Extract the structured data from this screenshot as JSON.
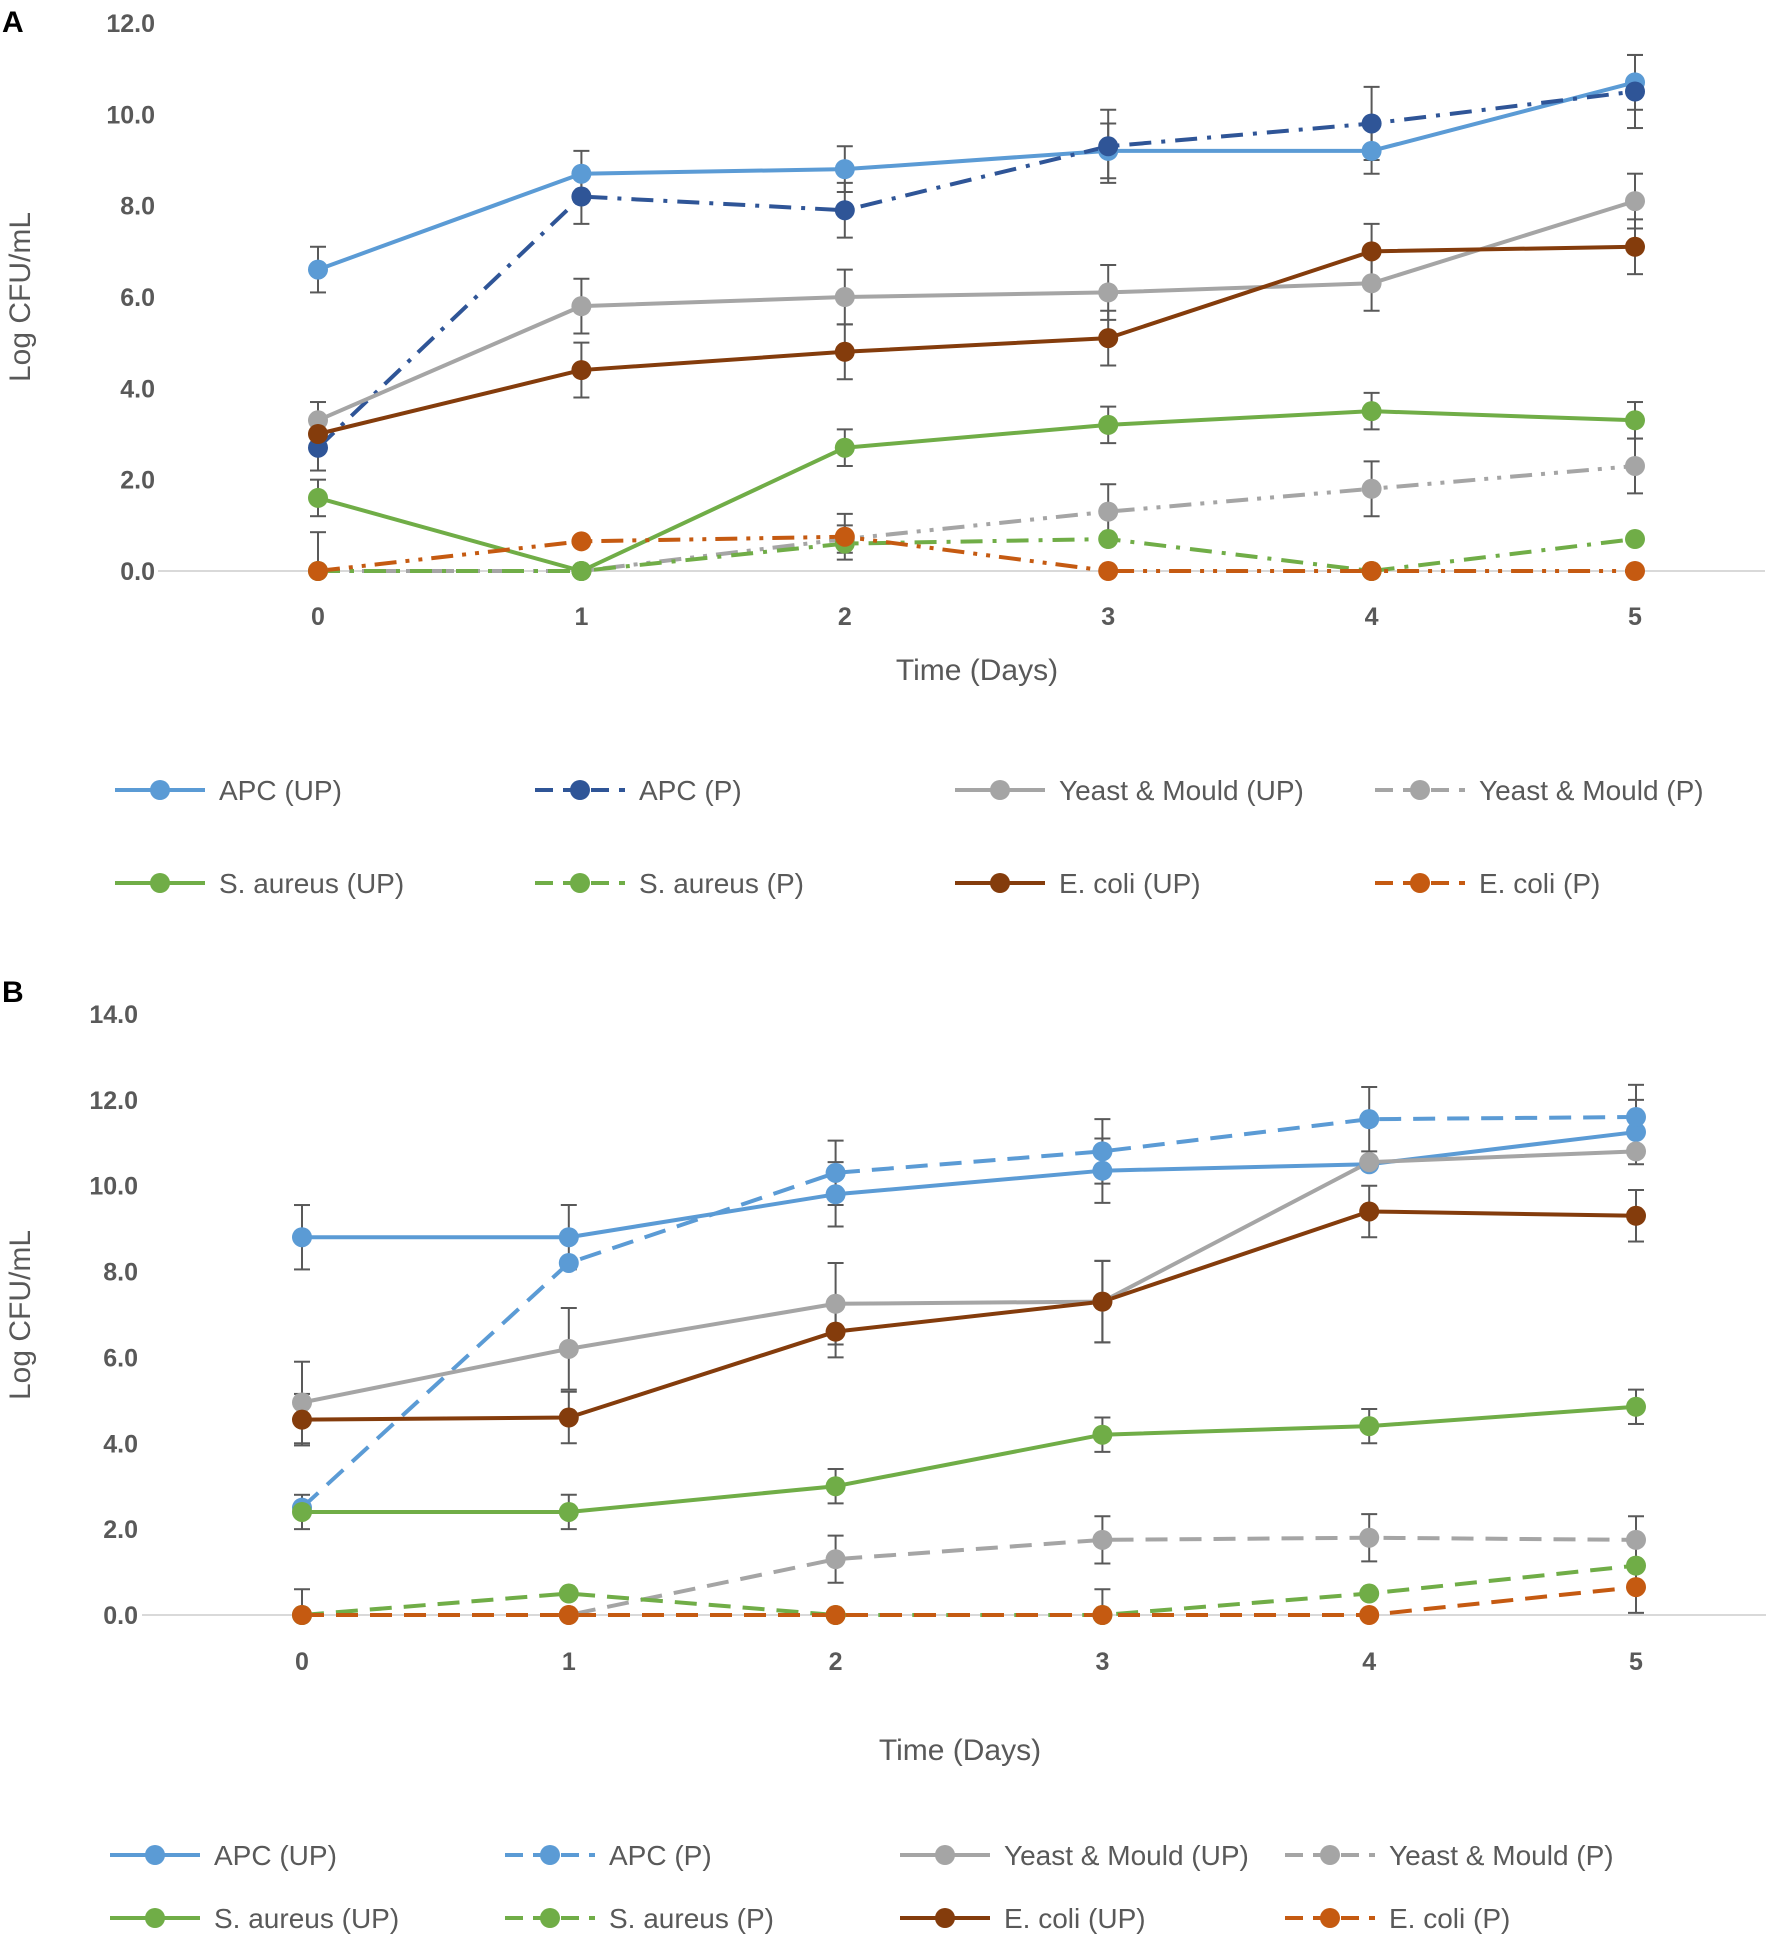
{
  "chart_data": [
    {
      "panel": "A",
      "type": "line",
      "title": "",
      "xlabel": "Time (Days)",
      "ylabel": "Log CFU/mL",
      "x": [
        0,
        1,
        2,
        3,
        4,
        5
      ],
      "x_ticks": [
        "0",
        "1",
        "2",
        "3",
        "4",
        "5"
      ],
      "ylim": [
        0,
        12
      ],
      "y_ticks": [
        "0.0",
        "2.0",
        "4.0",
        "6.0",
        "8.0",
        "10.0",
        "12.0"
      ],
      "grid": false,
      "legend_position": "bottom",
      "series": [
        {
          "name": "APC (UP)",
          "color": "#5B9BD5",
          "dash": "solid",
          "values": [
            6.6,
            8.7,
            8.8,
            9.2,
            9.2,
            10.7
          ],
          "errors": [
            0.5,
            0.5,
            0.5,
            0.6,
            0.5,
            0.6
          ]
        },
        {
          "name": "APC (P)",
          "color": "#2F5597",
          "dash": "dashdot",
          "values": [
            2.7,
            8.2,
            7.9,
            9.3,
            9.8,
            10.5
          ],
          "errors": [
            0.5,
            0.6,
            0.6,
            0.8,
            0.8,
            0.8
          ]
        },
        {
          "name": "Yeast & Mould (UP)",
          "color": "#A5A5A5",
          "dash": "solid",
          "values": [
            3.3,
            5.8,
            6.0,
            6.1,
            6.3,
            8.1
          ],
          "errors": [
            0.4,
            0.6,
            0.6,
            0.6,
            0.6,
            0.6
          ]
        },
        {
          "name": "Yeast & Mould (P)",
          "color": "#A5A5A5",
          "dash": "dashdotdot",
          "values": [
            0.0,
            0.0,
            0.7,
            1.3,
            1.8,
            2.3
          ],
          "errors": [
            0.0,
            0.0,
            0.3,
            0.6,
            0.6,
            0.6
          ]
        },
        {
          "name": "S. aureus (UP)",
          "color": "#70AD47",
          "dash": "solid",
          "values": [
            1.6,
            0.0,
            2.7,
            3.2,
            3.5,
            3.3
          ],
          "errors": [
            0.4,
            0.0,
            0.4,
            0.4,
            0.4,
            0.4
          ]
        },
        {
          "name": "S. aureus (P)",
          "color": "#70AD47",
          "dash": "dashdot",
          "values": [
            0.0,
            0.0,
            0.6,
            0.7,
            0.0,
            0.7
          ],
          "errors": [
            0.0,
            0.0,
            0.0,
            0.0,
            0.0,
            0.0
          ]
        },
        {
          "name": "E. coli (UP)",
          "color": "#843C0C",
          "dash": "solid",
          "values": [
            3.0,
            4.4,
            4.8,
            5.1,
            7.0,
            7.1
          ],
          "errors": [
            0.4,
            0.6,
            0.6,
            0.6,
            0.6,
            0.6
          ]
        },
        {
          "name": "E. coli (P)",
          "color": "#C55A11",
          "dash": "dashdotdot",
          "values": [
            0.0,
            0.65,
            0.75,
            0.0,
            0.0,
            0.0
          ],
          "errors": [
            0.85,
            0.0,
            0.5,
            0.0,
            0.0,
            0.0
          ]
        }
      ]
    },
    {
      "panel": "B",
      "type": "line",
      "title": "",
      "xlabel": "Time (Days)",
      "ylabel": "Log CFU/mL",
      "x": [
        0,
        1,
        2,
        3,
        4,
        5
      ],
      "x_ticks": [
        "0",
        "1",
        "2",
        "3",
        "4",
        "5"
      ],
      "ylim": [
        0,
        14
      ],
      "y_ticks": [
        "0.0",
        "2.0",
        "4.0",
        "6.0",
        "8.0",
        "10.0",
        "12.0",
        "14.0"
      ],
      "grid": false,
      "legend_position": "bottom",
      "series": [
        {
          "name": "APC (UP)",
          "color": "#5B9BD5",
          "dash": "solid",
          "values": [
            8.8,
            8.8,
            9.8,
            10.35,
            10.5,
            11.25
          ],
          "errors": [
            0.75,
            0.75,
            0.75,
            0.75,
            0.0,
            0.75
          ]
        },
        {
          "name": "APC (P)",
          "color": "#5B9BD5",
          "dash": "dashed",
          "values": [
            2.5,
            8.2,
            10.3,
            10.8,
            11.55,
            11.6
          ],
          "errors": [
            0.0,
            0.0,
            0.75,
            0.75,
            0.75,
            0.75
          ]
        },
        {
          "name": "Yeast & Mould (UP)",
          "color": "#A5A5A5",
          "dash": "solid",
          "values": [
            4.95,
            6.2,
            7.25,
            7.3,
            10.55,
            10.8
          ],
          "errors": [
            0.95,
            0.95,
            0.95,
            0.95,
            0.0,
            0.0
          ]
        },
        {
          "name": "Yeast & Mould (P)",
          "color": "#A5A5A5",
          "dash": "dashed",
          "values": [
            0.0,
            0.0,
            1.3,
            1.75,
            1.8,
            1.75
          ],
          "errors": [
            0.0,
            0.0,
            0.55,
            0.55,
            0.55,
            0.55
          ]
        },
        {
          "name": "S. aureus (UP)",
          "color": "#70AD47",
          "dash": "solid",
          "values": [
            2.4,
            2.4,
            3.0,
            4.2,
            4.4,
            4.85
          ],
          "errors": [
            0.4,
            0.4,
            0.4,
            0.4,
            0.4,
            0.4
          ]
        },
        {
          "name": "S. aureus (P)",
          "color": "#70AD47",
          "dash": "dashed",
          "values": [
            0.0,
            0.5,
            0.0,
            0.0,
            0.5,
            1.15
          ],
          "errors": [
            0.0,
            0.0,
            0.0,
            0.0,
            0.0,
            0.0
          ]
        },
        {
          "name": "E. coli (UP)",
          "color": "#843C0C",
          "dash": "solid",
          "values": [
            4.55,
            4.6,
            6.6,
            7.3,
            9.4,
            9.3
          ],
          "errors": [
            0.6,
            0.6,
            0.6,
            0.95,
            0.6,
            0.6
          ]
        },
        {
          "name": "E. coli (P)",
          "color": "#C55A11",
          "dash": "dashed",
          "values": [
            0.0,
            0.0,
            0.0,
            0.0,
            0.0,
            0.65
          ],
          "errors": [
            0.6,
            0.0,
            0.0,
            0.6,
            0.0,
            0.6
          ]
        }
      ]
    }
  ]
}
